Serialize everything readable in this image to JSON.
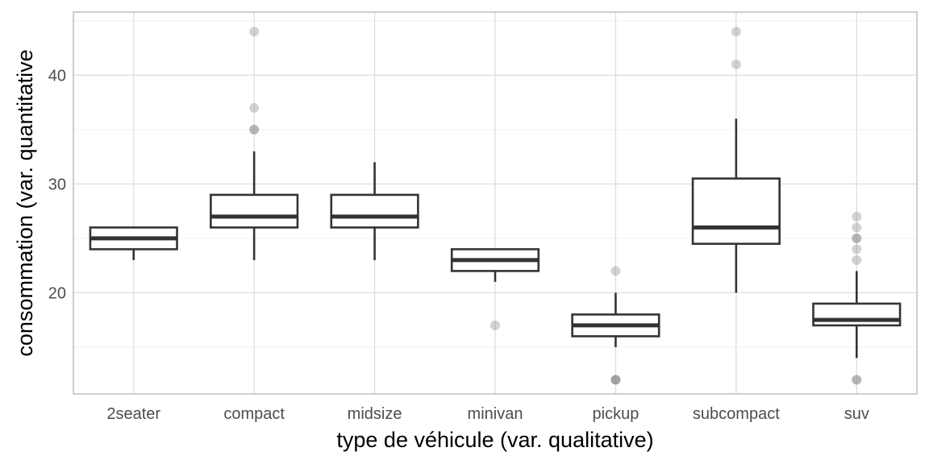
{
  "chart_data": {
    "type": "boxplot",
    "xlabel": "type de véhicule (var. qualitative)",
    "ylabel": "consommation (var. quantitative",
    "ylim": [
      10.7,
      45.8
    ],
    "y_major_ticks": [
      20,
      30,
      40
    ],
    "y_minor_ticks": [
      15,
      25,
      35,
      45
    ],
    "grid": true,
    "categories": [
      "2seater",
      "compact",
      "midsize",
      "minivan",
      "pickup",
      "subcompact",
      "suv"
    ],
    "boxes": [
      {
        "category": "2seater",
        "whisker_low": 23,
        "q1": 24,
        "median": 25,
        "q3": 26,
        "whisker_high": 26,
        "outliers": []
      },
      {
        "category": "compact",
        "whisker_low": 23,
        "q1": 26,
        "median": 27,
        "q3": 29,
        "whisker_high": 33,
        "outliers": [
          35,
          35,
          37,
          44
        ]
      },
      {
        "category": "midsize",
        "whisker_low": 23,
        "q1": 26,
        "median": 27,
        "q3": 29,
        "whisker_high": 32,
        "outliers": []
      },
      {
        "category": "minivan",
        "whisker_low": 21,
        "q1": 22,
        "median": 23,
        "q3": 24,
        "whisker_high": 24,
        "outliers": [
          17
        ]
      },
      {
        "category": "pickup",
        "whisker_low": 15,
        "q1": 16,
        "median": 17,
        "q3": 18,
        "whisker_high": 20,
        "outliers": [
          12,
          12,
          12,
          22
        ]
      },
      {
        "category": "subcompact",
        "whisker_low": 20,
        "q1": 24.5,
        "median": 26,
        "q3": 30.5,
        "whisker_high": 36,
        "outliers": [
          41,
          44
        ]
      },
      {
        "category": "suv",
        "whisker_low": 14,
        "q1": 17,
        "median": 17.5,
        "q3": 19,
        "whisker_high": 22,
        "outliers": [
          12,
          12,
          23,
          24,
          25,
          25,
          26,
          27
        ]
      }
    ],
    "colors": {
      "box_line": "#333333",
      "outlier": "#808080",
      "grid_major": "#dedede",
      "grid_minor": "#efefef",
      "panel_border": "#b3b3b3"
    }
  }
}
